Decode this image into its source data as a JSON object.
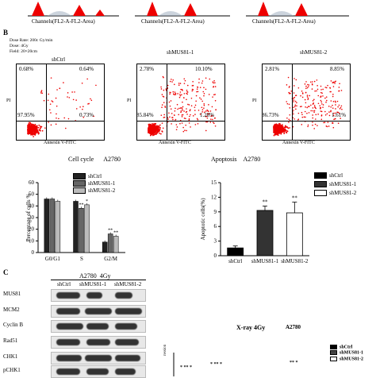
{
  "top_strip": {
    "labels": [
      "Channels(FL2-A-FL2-Area)",
      "Channels(FL2-A-FL2-Area)",
      "Channels(FL2-A-FL2-Area)"
    ]
  },
  "panel_b": {
    "letter": "B",
    "info": [
      "Dose Rate: 200c Gy/min",
      "Dose: 4Gy",
      "Field: 20×20cm"
    ],
    "plots": [
      {
        "title": "shCtrl",
        "ul": "0.68%",
        "ur": "0.64%",
        "ll": "97.95%",
        "lr": "0.73%"
      },
      {
        "title": "shMUS81-1",
        "ul": "2.78%",
        "ur": "10.10%",
        "ll": "85.84%",
        "lr": "1.28%"
      },
      {
        "title": "shMUS81-2",
        "ul": "2.81%",
        "ur": "8.85%",
        "ll": "86.73%",
        "lr": "1.61%"
      }
    ],
    "xaxis": "Annexin V-FITC",
    "yaxis": "PI",
    "y_ticks": [
      "10⁴",
      "10³",
      "10²",
      "10¹",
      "10⁰"
    ],
    "x_ticks": [
      "10⁰",
      "10¹",
      "10²",
      "10³",
      "10⁴"
    ]
  },
  "cell_cycle_title": [
    "Cell cycle",
    "A2780"
  ],
  "apoptosis_title": [
    "Apoptosis",
    "A2780"
  ],
  "chart_data": [
    {
      "type": "bar",
      "title": "",
      "ylabel": "Percentage of cells %",
      "categories": [
        "G0/G1",
        "S",
        "G2/M"
      ],
      "ylim": [
        0,
        60
      ],
      "yticks": [
        "0",
        "10",
        "20",
        "30",
        "40",
        "50",
        "60"
      ],
      "series": [
        {
          "name": "shCtrl",
          "values": [
            46,
            44,
            9
          ],
          "color": "#222222"
        },
        {
          "name": "shMUS81-1",
          "values": [
            46,
            38,
            16
          ],
          "color": "#666666"
        },
        {
          "name": "shMUS81-2",
          "values": [
            44,
            41,
            14
          ],
          "color": "#bbbbbb"
        }
      ],
      "sig": [
        [
          "",
          "**",
          "**"
        ],
        [
          "",
          "*",
          "**"
        ]
      ]
    },
    {
      "type": "bar",
      "title": "",
      "ylabel": "Apoptotic cells(%)",
      "categories": [
        "shCtrl",
        "shMUS81-1",
        "shMUS81-2"
      ],
      "ylim": [
        0,
        15
      ],
      "yticks": [
        "0",
        "3",
        "6",
        "9",
        "12",
        "15"
      ],
      "values": [
        1.6,
        9.3,
        8.8
      ],
      "errors": [
        0.4,
        0.9,
        2.2
      ],
      "colors": [
        "#000000",
        "#333333",
        "#ffffff"
      ],
      "legend": [
        "shCtrl",
        "shMUS81-1",
        "shMUS81-2"
      ],
      "sig": [
        "",
        "**",
        "**"
      ]
    }
  ],
  "panel_c": {
    "letter": "C",
    "header": "A2780  4Gy",
    "lanes": [
      "shCtrl",
      "shMUS81-1",
      "shMUS81-2"
    ],
    "proteins": [
      "MUS81",
      "MCM2",
      "Cyclin B",
      "Rad51",
      "CHK1",
      "pCHK1"
    ],
    "xray_label": "X-ray 4Gy",
    "xray_cell": "A2780",
    "mini_legend": [
      "shCtrl",
      "shMUS81-1",
      "shMUS81-2"
    ],
    "ylabel_fragment": "ression"
  }
}
